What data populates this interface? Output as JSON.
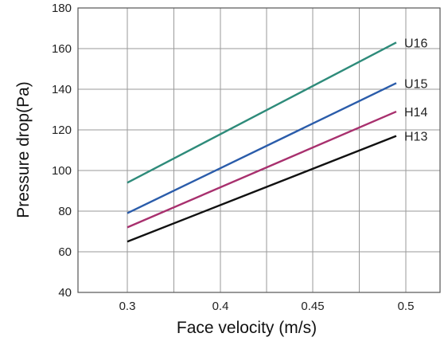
{
  "chart_data": {
    "type": "line",
    "title": "",
    "xlabel": "Face velocity (m/s)",
    "ylabel": "Pressure drop(Pa)",
    "x_tick_labels": [
      "0.3",
      "0.4",
      "0.45",
      "0.5"
    ],
    "y_tick_labels": [
      "40",
      "60",
      "80",
      "100",
      "120",
      "140",
      "160",
      "180"
    ],
    "ylim": [
      40,
      180
    ],
    "grid": true,
    "x": [
      "0.3",
      "0.5"
    ],
    "series": [
      {
        "name": "U16",
        "color": "#2e8b7a",
        "values": [
          94,
          163
        ]
      },
      {
        "name": "U15",
        "color": "#2a5caa",
        "values": [
          79,
          143
        ]
      },
      {
        "name": "H14",
        "color": "#a8306e",
        "values": [
          72,
          129
        ]
      },
      {
        "name": "H13",
        "color": "#111111",
        "values": [
          65,
          117
        ]
      }
    ]
  }
}
